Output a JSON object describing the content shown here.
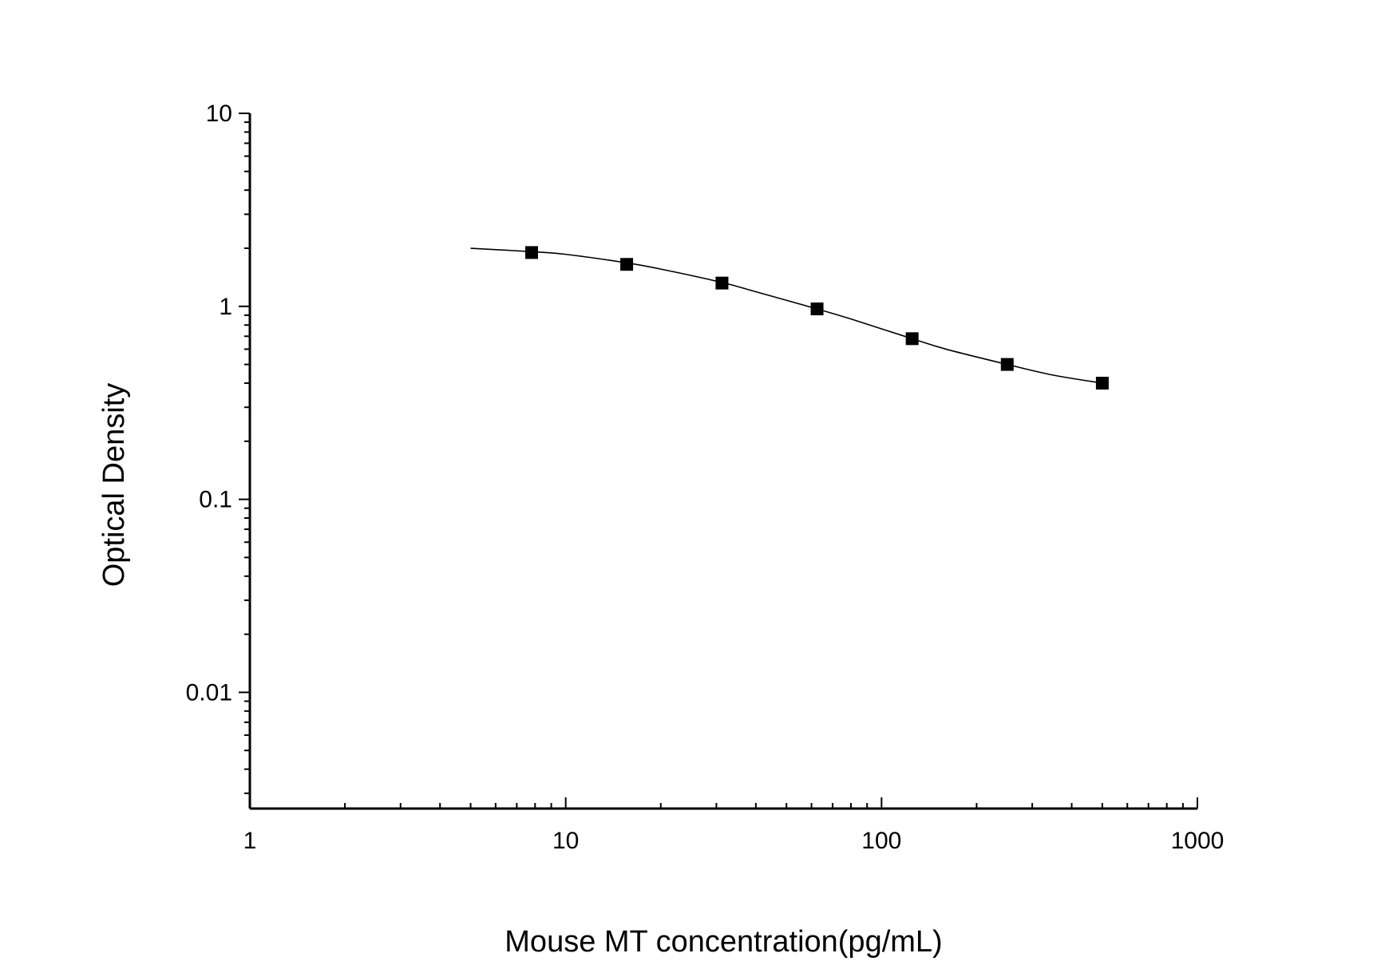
{
  "chart_data": {
    "type": "scatter",
    "title": "",
    "xlabel": "Mouse MT concentration(pg/mL)",
    "ylabel": "Optical Density",
    "x_scale": "log",
    "y_scale": "log",
    "xlim": [
      1,
      1000
    ],
    "ylim": [
      0.0025,
      10
    ],
    "x_ticks": [
      {
        "value": 1,
        "label": "1"
      },
      {
        "value": 10,
        "label": "10"
      },
      {
        "value": 100,
        "label": "100"
      },
      {
        "value": 1000,
        "label": "1000"
      }
    ],
    "y_ticks": [
      {
        "value": 0.01,
        "label": "0.01"
      },
      {
        "value": 0.1,
        "label": "0.1"
      },
      {
        "value": 1,
        "label": "1"
      },
      {
        "value": 10,
        "label": "10"
      }
    ],
    "grid": false,
    "legend": "none",
    "series": [
      {
        "x": [
          7.8,
          15.6,
          31.25,
          62.5,
          125,
          250,
          500
        ],
        "y": [
          1.9,
          1.65,
          1.32,
          0.97,
          0.68,
          0.5,
          0.4
        ],
        "marker": "square",
        "color": "#000000"
      }
    ],
    "fit_curve": {
      "x": [
        5,
        7.8,
        10,
        15.6,
        20,
        31.25,
        40,
        62.5,
        80,
        125,
        160,
        250,
        350,
        500
      ],
      "y": [
        2.0,
        1.92,
        1.86,
        1.68,
        1.56,
        1.33,
        1.19,
        0.97,
        0.86,
        0.68,
        0.6,
        0.5,
        0.44,
        0.4
      ],
      "color": "#000000"
    }
  }
}
